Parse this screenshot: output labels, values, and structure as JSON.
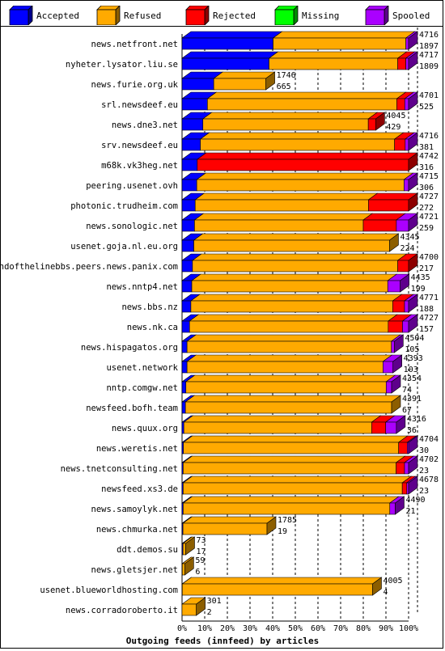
{
  "chart_data": {
    "type": "bar",
    "orientation": "horizontal",
    "stacked": true,
    "percent_scale": true,
    "title": "",
    "xlabel": "Outgoing feeds (innfeed) by articles",
    "xlim": [
      0,
      100
    ],
    "xticks": [
      "0%",
      "10%",
      "20%",
      "30%",
      "40%",
      "50%",
      "60%",
      "70%",
      "80%",
      "90%",
      "100%"
    ],
    "grid": true,
    "legend": {
      "placement": "top",
      "entries": [
        {
          "name": "Accepted",
          "color": "#0000FF"
        },
        {
          "name": "Refused",
          "color": "#FFAA00"
        },
        {
          "name": "Rejected",
          "color": "#FF0000"
        },
        {
          "name": "Missing",
          "color": "#00FF00"
        },
        {
          "name": "Spooled",
          "color": "#AA00FF"
        }
      ]
    },
    "series_names": [
      "Accepted",
      "Refused",
      "Rejected",
      "Missing",
      "Spooled"
    ],
    "rows": [
      {
        "host": "news.netfront.net",
        "total": "4716",
        "accepted": "1897",
        "pct": [
          40.2,
          58.6,
          0,
          0,
          1.2
        ]
      },
      {
        "host": "nyheter.lysator.liu.se",
        "total": "4717",
        "accepted": "1809",
        "pct": [
          38.4,
          56.8,
          3.6,
          0,
          1.2
        ]
      },
      {
        "host": "news.furie.org.uk",
        "total": "1746",
        "accepted": "665",
        "pct": [
          14.0,
          23.0,
          0,
          0,
          0
        ]
      },
      {
        "host": "srl.newsdeef.eu",
        "total": "4701",
        "accepted": "525",
        "pct": [
          11.2,
          83.6,
          3.5,
          0,
          1.7
        ]
      },
      {
        "host": "news.dne3.net",
        "total": "4045",
        "accepted": "429",
        "pct": [
          9.2,
          73.0,
          3.3,
          0,
          0
        ]
      },
      {
        "host": "srv.newsdeef.eu",
        "total": "4716",
        "accepted": "381",
        "pct": [
          8.1,
          85.7,
          4.7,
          0,
          1.5
        ]
      },
      {
        "host": "m68k.vk3heg.net",
        "total": "4742",
        "accepted": "316",
        "pct": [
          6.7,
          0,
          93.3,
          0,
          0
        ]
      },
      {
        "host": "peering.usenet.ovh",
        "total": "4715",
        "accepted": "306",
        "pct": [
          6.5,
          91.5,
          0,
          0,
          2.0
        ]
      },
      {
        "host": "photonic.trudheim.com",
        "total": "4727",
        "accepted": "272",
        "pct": [
          5.8,
          76.5,
          17.7,
          0,
          0
        ]
      },
      {
        "host": "news.sonologic.net",
        "total": "4721",
        "accepted": "259",
        "pct": [
          5.5,
          74.5,
          14.6,
          0,
          5.4
        ]
      },
      {
        "host": "usenet.goja.nl.eu.org",
        "total": "4345",
        "accepted": "224",
        "pct": [
          5.2,
          86.4,
          0,
          0,
          0
        ]
      },
      {
        "host": "endofthelinebbs.peers.news.panix.com",
        "total": "4700",
        "accepted": "217",
        "pct": [
          4.6,
          90.6,
          4.8,
          0,
          0
        ]
      },
      {
        "host": "news.nntp4.net",
        "total": "4435",
        "accepted": "199",
        "pct": [
          4.3,
          86.5,
          0,
          0,
          5.5
        ]
      },
      {
        "host": "news.bbs.nz",
        "total": "4771",
        "accepted": "188",
        "pct": [
          3.9,
          89.1,
          5.2,
          0,
          1.8
        ]
      },
      {
        "host": "news.nk.ca",
        "total": "4727",
        "accepted": "157",
        "pct": [
          3.3,
          87.7,
          6.3,
          0,
          2.7
        ]
      },
      {
        "host": "news.hispagatos.org",
        "total": "4504",
        "accepted": "105",
        "pct": [
          2.2,
          90.2,
          0,
          0,
          1.3
        ]
      },
      {
        "host": "usenet.network",
        "total": "4393",
        "accepted": "103",
        "pct": [
          2.2,
          86.5,
          0,
          0,
          4.4
        ]
      },
      {
        "host": "nntp.comgw.net",
        "total": "4354",
        "accepted": "74",
        "pct": [
          1.7,
          88.4,
          0,
          0,
          2.4
        ]
      },
      {
        "host": "newsfeed.bofh.team",
        "total": "4391",
        "accepted": "67",
        "pct": [
          1.5,
          91.0,
          0,
          0,
          0
        ]
      },
      {
        "host": "news.quux.org",
        "total": "4316",
        "accepted": "36",
        "pct": [
          0.8,
          82.9,
          6.2,
          0,
          4.7
        ]
      },
      {
        "host": "news.weretis.net",
        "total": "4704",
        "accepted": "30",
        "pct": [
          0.6,
          95.0,
          3.8,
          0,
          0.6
        ]
      },
      {
        "host": "news.tnetconsulting.net",
        "total": "4702",
        "accepted": "23",
        "pct": [
          0.5,
          94.0,
          3.7,
          0,
          1.8
        ]
      },
      {
        "host": "newsfeed.xs3.de",
        "total": "4678",
        "accepted": "23",
        "pct": [
          0.5,
          96.7,
          2.0,
          0,
          0.8
        ]
      },
      {
        "host": "news.samoylyk.net",
        "total": "4490",
        "accepted": "21",
        "pct": [
          0.5,
          91.2,
          0,
          0,
          2.4
        ]
      },
      {
        "host": "news.chmurka.net",
        "total": "1785",
        "accepted": "19",
        "pct": [
          0.4,
          37.1,
          0,
          0,
          0
        ]
      },
      {
        "host": "ddt.demos.su",
        "total": "73",
        "accepted": "17",
        "pct": [
          0.4,
          1.2,
          0,
          0,
          0
        ]
      },
      {
        "host": "news.gletsjer.net",
        "total": "59",
        "accepted": "6",
        "pct": [
          0.1,
          1.1,
          0,
          0,
          0
        ]
      },
      {
        "host": "usenet.blueworldhosting.com",
        "total": "4005",
        "accepted": "4",
        "pct": [
          0.1,
          84.0,
          0,
          0,
          0
        ]
      },
      {
        "host": "news.corradoroberto.it",
        "total": "301",
        "accepted": "2",
        "pct": [
          0.0,
          6.3,
          0,
          0,
          0
        ]
      }
    ]
  }
}
